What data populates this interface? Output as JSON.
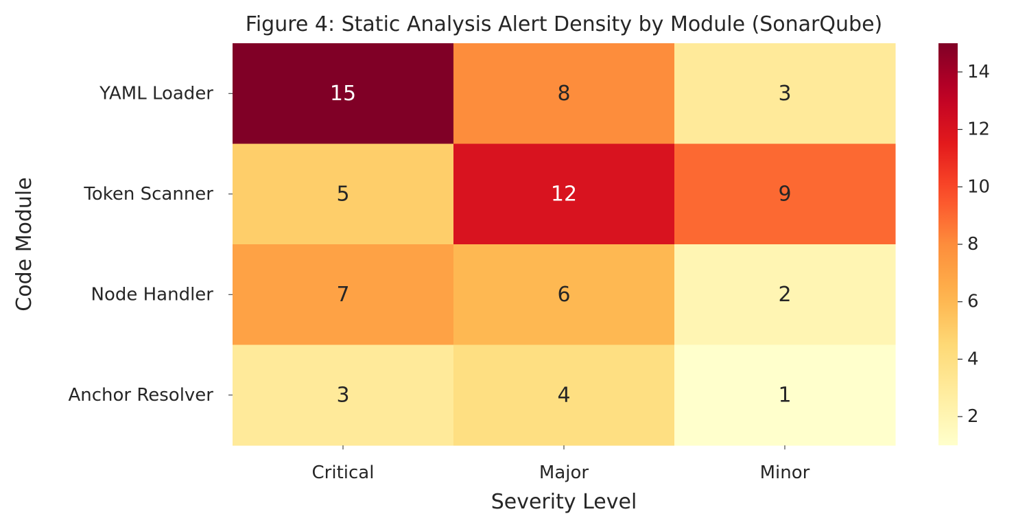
{
  "chart_data": {
    "type": "heatmap",
    "title": "Figure 4: Static Analysis Alert Density by Module (SonarQube)",
    "xlabel": "Severity Level",
    "ylabel": "Code Module",
    "x_categories": [
      "Critical",
      "Major",
      "Minor"
    ],
    "y_categories": [
      "YAML Loader",
      "Token Scanner",
      "Node Handler",
      "Anchor Resolver"
    ],
    "values": [
      [
        15,
        8,
        3
      ],
      [
        5,
        12,
        9
      ],
      [
        7,
        6,
        2
      ],
      [
        3,
        4,
        1
      ]
    ],
    "colorbar": {
      "ticks": [
        2,
        4,
        6,
        8,
        10,
        12,
        14
      ],
      "range": [
        1,
        15
      ],
      "colormap": "YlOrRd"
    },
    "annotations": true
  }
}
